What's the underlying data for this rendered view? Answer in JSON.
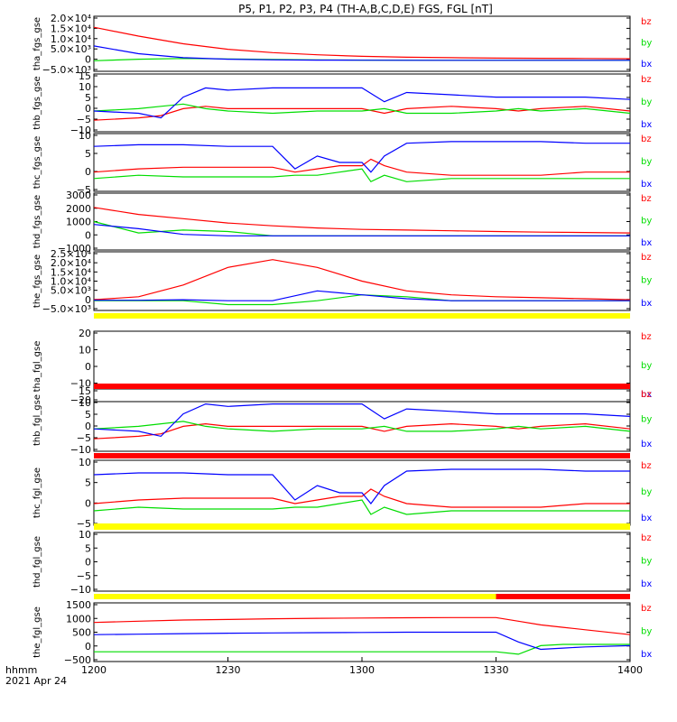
{
  "title": "P5, P1, P2, P3, P4 (TH-A,B,C,D,E) FGS, FGL [nT]",
  "footer": {
    "label_left": "hhmm",
    "date": "2021 Apr 24"
  },
  "x_ticks": [
    "1200",
    "1230",
    "1300",
    "1330",
    "1400"
  ],
  "legend": [
    "bz",
    "by",
    "bx"
  ],
  "colors": {
    "bz": "#ff0000",
    "by": "#00dd00",
    "bx": "#0000ff",
    "bar_yellow": "#ffff00",
    "bar_red": "#ff0000"
  },
  "chart_data": [
    {
      "type": "line",
      "ylabel": "tha_fgs_gse",
      "ylim": [
        -5000,
        20000
      ],
      "yticks": [
        "2.0×10⁴",
        "1.5×10⁴",
        "1.0×10⁴",
        "5.0×10³",
        "0",
        "−5.0×10³"
      ],
      "x": [
        1200,
        1210,
        1220,
        1230,
        1240,
        1250,
        1300,
        1310,
        1320,
        1330,
        1340,
        1350,
        1400
      ],
      "series": [
        {
          "name": "bz",
          "values": [
            15000,
            11000,
            7500,
            5000,
            3500,
            2500,
            1800,
            1400,
            1200,
            1000,
            900,
            800,
            700
          ]
        },
        {
          "name": "by",
          "values": [
            -200,
            500,
            800,
            600,
            400,
            200,
            100,
            50,
            0,
            0,
            0,
            0,
            0
          ]
        },
        {
          "name": "bx",
          "values": [
            6500,
            3000,
            1200,
            500,
            200,
            100,
            50,
            0,
            0,
            0,
            0,
            0,
            0
          ]
        }
      ]
    },
    {
      "type": "line",
      "ylabel": "thb_fgs_gse",
      "ylim": [
        -10,
        15
      ],
      "yticks": [
        "15",
        "10",
        "5",
        "0",
        "−5",
        "−10"
      ],
      "x": [
        1200,
        1210,
        1215,
        1220,
        1225,
        1230,
        1240,
        1250,
        1300,
        1305,
        1310,
        1320,
        1330,
        1335,
        1340,
        1350,
        1400
      ],
      "series": [
        {
          "name": "bz",
          "values": [
            -5,
            -4,
            -3,
            0,
            1,
            0,
            0,
            0,
            0,
            -2,
            0,
            1,
            0,
            -1,
            0,
            1,
            -1
          ]
        },
        {
          "name": "by",
          "values": [
            -1,
            0,
            1,
            2,
            0,
            -1,
            -2,
            -1,
            -1,
            0,
            -2,
            -2,
            -1,
            0,
            -1,
            0,
            -2
          ]
        },
        {
          "name": "bx",
          "values": [
            -1,
            -2,
            -4,
            5,
            9,
            8,
            9,
            9,
            9,
            3,
            7,
            6,
            5,
            5,
            5,
            5,
            4
          ]
        }
      ]
    },
    {
      "type": "line",
      "ylabel": "thc_fgs_gse",
      "ylim": [
        -6,
        12
      ],
      "yticks": [
        "10",
        "5",
        "0",
        "−5"
      ],
      "x": [
        1200,
        1210,
        1220,
        1230,
        1240,
        1245,
        1250,
        1255,
        1300,
        1302,
        1305,
        1310,
        1320,
        1330,
        1340,
        1350,
        1400
      ],
      "series": [
        {
          "name": "bz",
          "values": [
            0,
            1,
            1.5,
            1.5,
            1.5,
            0,
            1,
            2,
            2,
            4,
            2,
            0,
            -1,
            -1,
            -1,
            0,
            0
          ]
        },
        {
          "name": "by",
          "values": [
            -2,
            -1,
            -1.5,
            -1.5,
            -1.5,
            -1,
            -1,
            0,
            1,
            -3,
            -1,
            -3,
            -2,
            -2,
            -2,
            -2,
            -2
          ]
        },
        {
          "name": "bx",
          "values": [
            8,
            8.5,
            8.5,
            8,
            8,
            1,
            5,
            3,
            3,
            0,
            5,
            9,
            9.5,
            9.5,
            9.5,
            9,
            9
          ]
        }
      ]
    },
    {
      "type": "line",
      "ylabel": "thd_fgs_gse",
      "ylim": [
        -1000,
        3000
      ],
      "yticks": [
        "3000",
        "2000",
        "1000",
        "0",
        "−1000"
      ],
      "x": [
        1200,
        1210,
        1220,
        1230,
        1240,
        1250,
        1300,
        1310,
        1320,
        1330,
        1340,
        1350,
        1400
      ],
      "series": [
        {
          "name": "bz",
          "values": [
            2000,
            1500,
            1200,
            900,
            700,
            550,
            450,
            400,
            350,
            300,
            260,
            230,
            200
          ]
        },
        {
          "name": "by",
          "values": [
            1000,
            200,
            400,
            300,
            0,
            0,
            0,
            0,
            0,
            0,
            0,
            0,
            0
          ]
        },
        {
          "name": "bx",
          "values": [
            800,
            500,
            100,
            0,
            0,
            0,
            0,
            0,
            0,
            0,
            0,
            0,
            0
          ]
        }
      ]
    },
    {
      "type": "line",
      "ylabel": "the_fgs_gse",
      "ylim": [
        -5000,
        25000
      ],
      "yticks": [
        "2.5×10⁴",
        "2.0×10⁴",
        "1.5×10⁴",
        "1.0×10⁴",
        "5.0×10³",
        "0",
        "−5.0×10³"
      ],
      "x": [
        1200,
        1210,
        1220,
        1230,
        1240,
        1250,
        1300,
        1310,
        1320,
        1330,
        1340,
        1350,
        1400
      ],
      "series": [
        {
          "name": "bz",
          "values": [
            500,
            2000,
            8000,
            17000,
            21000,
            17000,
            10000,
            5000,
            3000,
            2000,
            1500,
            1000,
            500
          ]
        },
        {
          "name": "by",
          "values": [
            0,
            0,
            0,
            -2000,
            -2000,
            0,
            3000,
            2000,
            0,
            0,
            0,
            0,
            0
          ]
        },
        {
          "name": "bx",
          "values": [
            200,
            200,
            500,
            0,
            0,
            5000,
            3000,
            1000,
            0,
            0,
            0,
            0,
            0
          ]
        }
      ]
    },
    {
      "type": "line",
      "ylabel": "tha_fgl_gse",
      "ylim": [
        -25,
        25
      ],
      "yticks": [
        "20",
        "10",
        "0",
        "−10",
        "−20"
      ],
      "x": [],
      "series": []
    },
    {
      "type": "line",
      "ylabel": "thb_fgl_gse",
      "ylim": [
        -10,
        15
      ],
      "yticks": [
        "15",
        "10",
        "5",
        "0",
        "−5",
        "−10"
      ],
      "x": [
        1200,
        1210,
        1215,
        1220,
        1225,
        1230,
        1240,
        1250,
        1300,
        1305,
        1310,
        1320,
        1330,
        1335,
        1340,
        1350,
        1400
      ],
      "series": [
        {
          "name": "bz",
          "values": [
            -5,
            -4,
            -3,
            0,
            1,
            0,
            0,
            0,
            0,
            -2,
            0,
            1,
            0,
            -1,
            0,
            1,
            -1
          ]
        },
        {
          "name": "by",
          "values": [
            -1,
            0,
            1,
            2,
            0,
            -1,
            -2,
            -1,
            -1,
            0,
            -2,
            -2,
            -1,
            0,
            -1,
            0,
            -2
          ]
        },
        {
          "name": "bx",
          "values": [
            -1,
            -2,
            -4,
            5,
            9,
            8,
            9,
            9,
            9,
            3,
            7,
            6,
            5,
            5,
            5,
            5,
            4
          ]
        }
      ]
    },
    {
      "type": "line",
      "ylabel": "thc_fgl_gse",
      "ylim": [
        -6,
        12
      ],
      "yticks": [
        "10",
        "5",
        "0",
        "−5"
      ],
      "x": [
        1200,
        1210,
        1220,
        1230,
        1240,
        1245,
        1250,
        1255,
        1300,
        1302,
        1305,
        1310,
        1320,
        1330,
        1340,
        1350,
        1400
      ],
      "series": [
        {
          "name": "bz",
          "values": [
            0,
            1,
            1.5,
            1.5,
            1.5,
            0,
            1,
            2,
            2,
            4,
            2,
            0,
            -1,
            -1,
            -1,
            0,
            0
          ]
        },
        {
          "name": "by",
          "values": [
            -2,
            -1,
            -1.5,
            -1.5,
            -1.5,
            -1,
            -1,
            0,
            1,
            -3,
            -1,
            -3,
            -2,
            -2,
            -2,
            -2,
            -2
          ]
        },
        {
          "name": "bx",
          "values": [
            8,
            8.5,
            8.5,
            8,
            8,
            1,
            5,
            3,
            3,
            0,
            5,
            9,
            9.5,
            9.5,
            9.5,
            9,
            9
          ]
        }
      ]
    },
    {
      "type": "line",
      "ylabel": "thd_fgl_gse",
      "ylim": [
        -12,
        12
      ],
      "yticks": [
        "10",
        "5",
        "0",
        "−5",
        "−10"
      ],
      "x": [],
      "series": []
    },
    {
      "type": "line",
      "ylabel": "the_fgl_gse",
      "ylim": [
        -700,
        1700
      ],
      "yticks": [
        "1500",
        "1000",
        "500",
        "0",
        "−500"
      ],
      "x": [
        1200,
        1210,
        1220,
        1230,
        1240,
        1250,
        1300,
        1310,
        1320,
        1330,
        1335,
        1340,
        1345,
        1350,
        1400
      ],
      "series": [
        {
          "name": "bz",
          "values": [
            900,
            950,
            1000,
            1020,
            1050,
            1070,
            1080,
            1090,
            1100,
            1100,
            950,
            800,
            700,
            600,
            400
          ]
        },
        {
          "name": "by",
          "values": [
            -300,
            -300,
            -300,
            -300,
            -300,
            -300,
            -300,
            -300,
            -300,
            -300,
            -400,
            -50,
            0,
            0,
            0
          ]
        },
        {
          "name": "bx",
          "values": [
            400,
            420,
            440,
            460,
            470,
            480,
            490,
            500,
            500,
            500,
            100,
            -200,
            -150,
            -100,
            -50
          ]
        }
      ]
    }
  ],
  "mode_bars": [
    {
      "segments": [
        {
          "from": 1200,
          "to": 1400,
          "color": "yellow"
        }
      ]
    },
    {
      "segments": [
        {
          "from": 1200,
          "to": 1400,
          "color": "red"
        }
      ]
    },
    {
      "segments": [
        {
          "from": 1200,
          "to": 1400,
          "color": "red"
        }
      ]
    },
    {
      "segments": [
        {
          "from": 1200,
          "to": 1400,
          "color": "yellow"
        }
      ]
    },
    {
      "segments": [
        {
          "from": 1200,
          "to": 1330,
          "color": "yellow"
        },
        {
          "from": 1330,
          "to": 1400,
          "color": "red"
        }
      ]
    }
  ]
}
